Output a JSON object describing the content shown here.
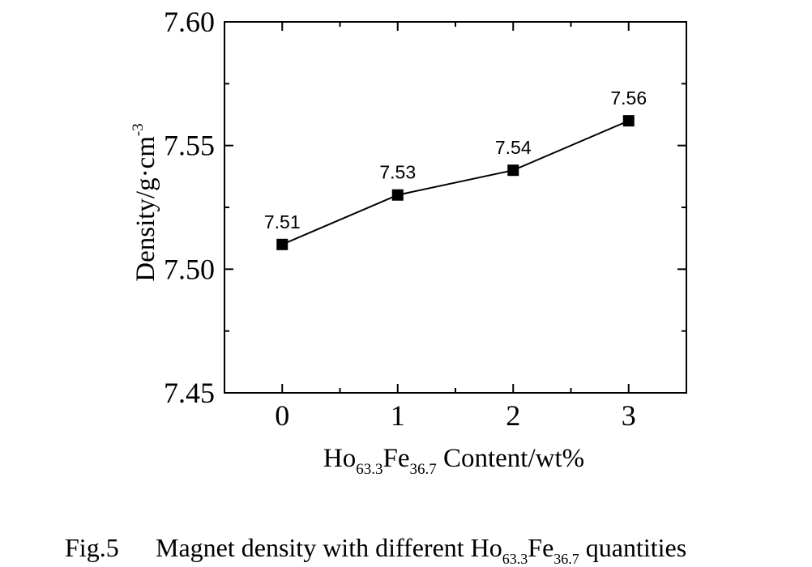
{
  "chart_data": {
    "type": "line",
    "x": [
      0,
      1,
      2,
      3
    ],
    "values": [
      7.51,
      7.53,
      7.54,
      7.56
    ],
    "data_labels": [
      "7.51",
      "7.53",
      "7.54",
      "7.56"
    ],
    "xticks": [
      0,
      1,
      2,
      3
    ],
    "xtick_labels": [
      "0",
      "1",
      "2",
      "3"
    ],
    "yticks": [
      7.45,
      7.5,
      7.55,
      7.6
    ],
    "ytick_labels": [
      "7.45",
      "7.50",
      "7.55",
      "7.60"
    ],
    "xlim": [
      -0.5,
      3.5
    ],
    "ylim": [
      7.45,
      7.6
    ],
    "xlabel": {
      "pre": "Ho",
      "sub1": "63.3",
      "mid": "Fe",
      "sub2": "36.7",
      "post": " Content/wt%"
    },
    "ylabel": {
      "base": "Density/g·cm",
      "sup": "-3"
    },
    "marker": "square",
    "grid": false,
    "colors": {
      "line": "#000000",
      "marker": "#000000"
    }
  },
  "caption": {
    "prefix": "Fig.5",
    "text": "Magnet density with different Ho",
    "sub1": "63.3",
    "mid": "Fe",
    "sub2": "36.7",
    "post": " quantities"
  }
}
